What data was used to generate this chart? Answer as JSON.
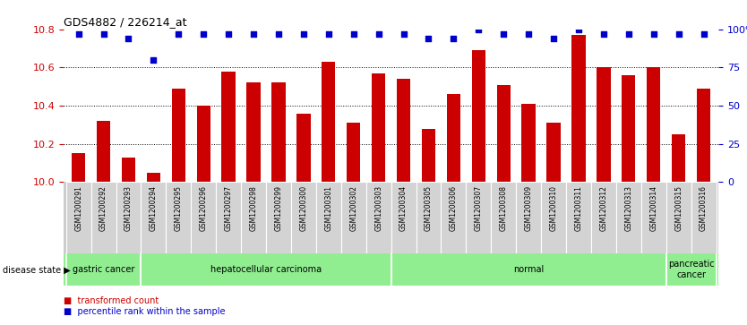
{
  "title": "GDS4882 / 226214_at",
  "samples": [
    "GSM1200291",
    "GSM1200292",
    "GSM1200293",
    "GSM1200294",
    "GSM1200295",
    "GSM1200296",
    "GSM1200297",
    "GSM1200298",
    "GSM1200299",
    "GSM1200300",
    "GSM1200301",
    "GSM1200302",
    "GSM1200303",
    "GSM1200304",
    "GSM1200305",
    "GSM1200306",
    "GSM1200307",
    "GSM1200308",
    "GSM1200309",
    "GSM1200310",
    "GSM1200311",
    "GSM1200312",
    "GSM1200313",
    "GSM1200314",
    "GSM1200315",
    "GSM1200316"
  ],
  "bar_values": [
    10.15,
    10.32,
    10.13,
    10.05,
    10.49,
    10.4,
    10.58,
    10.52,
    10.52,
    10.36,
    10.63,
    10.31,
    10.57,
    10.54,
    10.28,
    10.46,
    10.69,
    10.51,
    10.41,
    10.31,
    10.77,
    10.6,
    10.56,
    10.6,
    10.25,
    10.49
  ],
  "percentile_values": [
    97,
    97,
    94,
    80,
    97,
    97,
    97,
    97,
    97,
    97,
    97,
    97,
    97,
    97,
    94,
    94,
    100,
    97,
    97,
    94,
    100,
    97,
    97,
    97,
    97,
    97
  ],
  "ylim_left": [
    10.0,
    10.8
  ],
  "ylim_right": [
    0,
    100
  ],
  "bar_color": "#cc0000",
  "percentile_color": "#0000cc",
  "disease_groups": [
    {
      "label": "gastric cancer",
      "start": 0,
      "end": 3
    },
    {
      "label": "hepatocellular carcinoma",
      "start": 3,
      "end": 13
    },
    {
      "label": "normal",
      "start": 13,
      "end": 24
    },
    {
      "label": "pancreatic\ncancer",
      "start": 24,
      "end": 26
    }
  ]
}
